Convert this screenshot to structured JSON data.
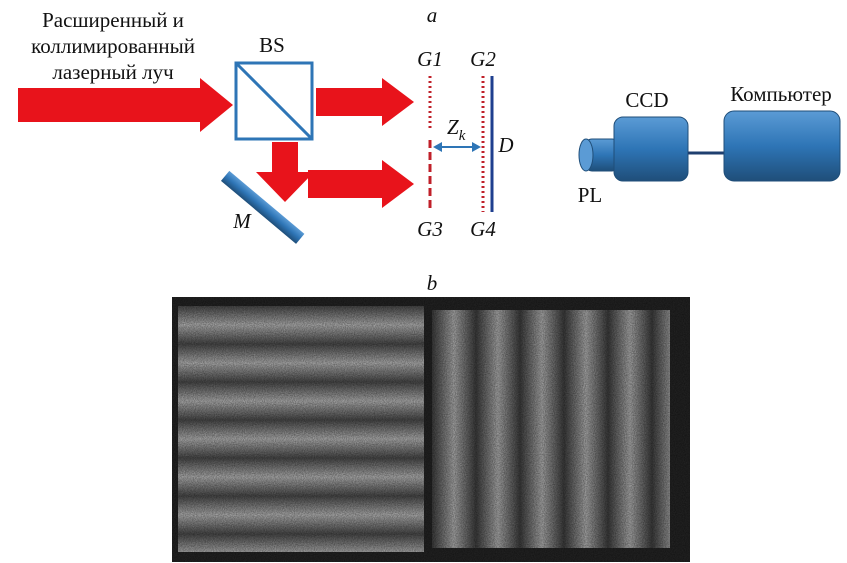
{
  "panel_a": {
    "label": "a",
    "input_beam": [
      "Расширенный и",
      "коллимированный",
      "лазерный луч"
    ],
    "beam_splitter": "BS",
    "mirror": "M",
    "gratings": [
      "G1",
      "G2",
      "G3",
      "G4"
    ],
    "distance": {
      "symbol": "Z",
      "subscript": "k"
    },
    "detector": "D",
    "camera": "CCD",
    "computer": "Компьютер",
    "lens": "PL"
  },
  "panel_b": {
    "label": "b"
  }
}
